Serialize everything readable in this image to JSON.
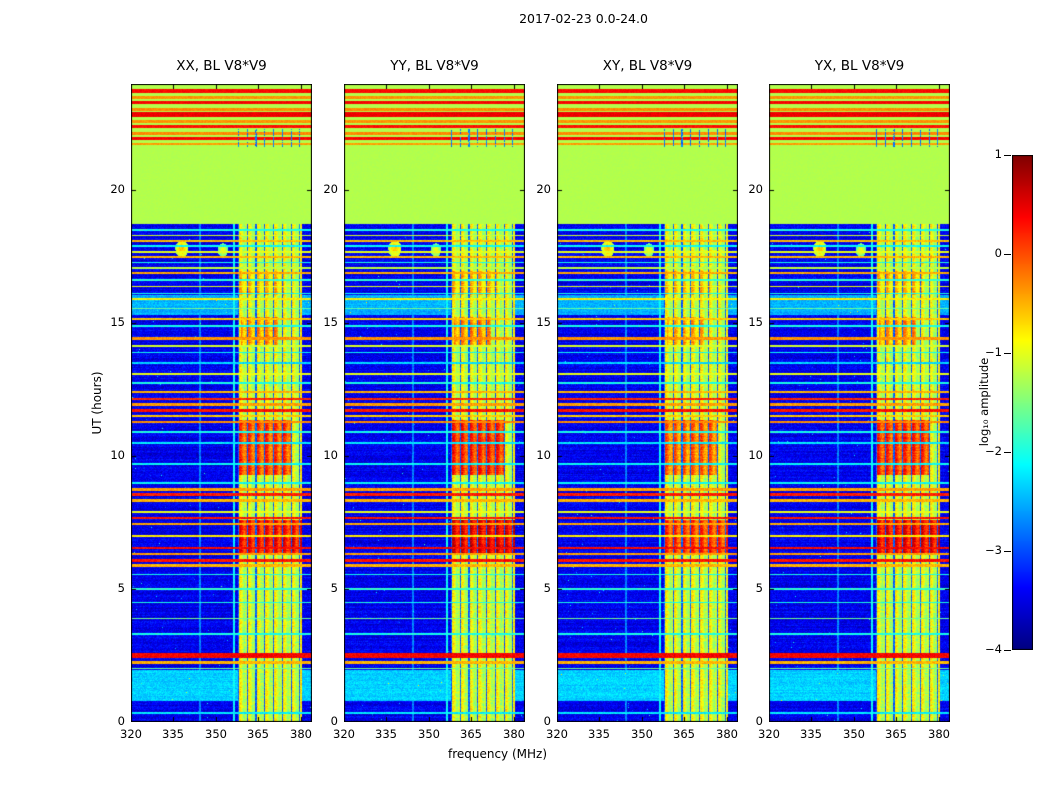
{
  "chart_data": {
    "type": "heatmap",
    "title": "2017-02-23 0.0-24.0",
    "xlabel": "frequency (MHz)",
    "ylabel": "UT (hours)",
    "x_range": [
      320,
      384
    ],
    "y_range": [
      0,
      24
    ],
    "x_ticks": [
      320,
      335,
      350,
      365,
      380
    ],
    "y_ticks": [
      0,
      5,
      10,
      15,
      20
    ],
    "colorbar": {
      "label": "log₁₀ amplitude",
      "ticks": [
        1,
        0,
        -1,
        -2,
        -3,
        -4
      ],
      "vmin": -4,
      "vmax": 1,
      "colormap": "jet"
    },
    "panels": [
      {
        "title": "XX, BL V8*V9",
        "seed": 11,
        "hot_gain": 1.0
      },
      {
        "title": "YY, BL V8*V9",
        "seed": 23,
        "hot_gain": 1.12
      },
      {
        "title": "XY, BL V8*V9",
        "seed": 37,
        "hot_gain": 0.8
      },
      {
        "title": "YX, BL V8*V9",
        "seed": 51,
        "hot_gain": 1.05
      }
    ],
    "features": {
      "background_level": -3.45,
      "noise": {
        "row": 0.25,
        "pixel": 0.45,
        "speckle_prob": 0.0025,
        "speckle_boost": 1.6
      },
      "green_block": {
        "t0": 18.72,
        "t1": 21.62,
        "level": -1.25
      },
      "top_block": {
        "t0": 21.62,
        "level": -1.25,
        "stripes": [
          [
            23.75,
            0.07,
            0.35
          ],
          [
            23.5,
            0.05,
            -0.35
          ],
          [
            23.3,
            0.06,
            0.4
          ],
          [
            23.05,
            0.05,
            -0.3
          ],
          [
            22.85,
            0.08,
            0.45
          ],
          [
            22.6,
            0.05,
            -0.35
          ],
          [
            22.4,
            0.05,
            0.3
          ],
          [
            22.15,
            0.06,
            -0.3
          ],
          [
            21.95,
            0.05,
            0.4
          ],
          [
            21.74,
            0.04,
            -0.4
          ]
        ]
      },
      "band": {
        "f0": 357.8,
        "f1": 380.3,
        "level": -1.05,
        "col_period": 3.1,
        "col_amp": 0.3,
        "dark_width": 0.42,
        "dark_level": -2.9
      },
      "stripes": [
        [
          18.5,
          0.035,
          -2.0
        ],
        [
          18.3,
          0.035,
          -1.1
        ],
        [
          18.08,
          0.04,
          -0.55
        ],
        [
          17.9,
          0.03,
          -2.1
        ],
        [
          17.68,
          0.035,
          -1.0
        ],
        [
          17.5,
          0.045,
          -0.5
        ],
        [
          17.28,
          0.03,
          -2.0
        ],
        [
          17.08,
          0.035,
          -1.2
        ],
        [
          16.88,
          0.045,
          -0.45
        ],
        [
          16.62,
          0.03,
          -1.9
        ],
        [
          16.38,
          0.035,
          -1.0
        ],
        [
          16.12,
          0.035,
          -2.0
        ],
        [
          15.92,
          0.045,
          -0.8
        ],
        [
          15.55,
          0.03,
          -1.6
        ],
        [
          15.15,
          0.04,
          -0.6
        ],
        [
          14.9,
          0.03,
          -2.0
        ],
        [
          14.42,
          0.055,
          -0.35
        ],
        [
          14.15,
          0.035,
          -1.1
        ],
        [
          13.9,
          0.03,
          -2.1
        ],
        [
          13.5,
          0.03,
          -2.3
        ],
        [
          13.1,
          0.03,
          -1.0
        ],
        [
          12.75,
          0.03,
          -2.0
        ],
        [
          12.42,
          0.04,
          -0.5
        ],
        [
          12.15,
          0.05,
          0.2
        ],
        [
          11.95,
          0.045,
          -0.4
        ],
        [
          11.73,
          0.05,
          0.3
        ],
        [
          11.52,
          0.04,
          -0.6
        ],
        [
          11.3,
          0.04,
          -0.3
        ],
        [
          10.9,
          0.03,
          -2.0
        ],
        [
          10.5,
          0.025,
          -2.2
        ],
        [
          9.7,
          0.025,
          -2.1
        ],
        [
          9.0,
          0.03,
          -2.1
        ],
        [
          8.75,
          0.045,
          -0.4
        ],
        [
          8.55,
          0.05,
          0.25
        ],
        [
          8.33,
          0.04,
          -0.5
        ],
        [
          7.9,
          0.03,
          -1.0
        ],
        [
          7.68,
          0.05,
          0.3
        ],
        [
          7.45,
          0.04,
          -0.45
        ],
        [
          7.0,
          0.03,
          -0.8
        ],
        [
          6.55,
          0.05,
          0.35
        ],
        [
          6.33,
          0.04,
          -0.4
        ],
        [
          6.08,
          0.055,
          0.3
        ],
        [
          5.88,
          0.05,
          -0.5
        ],
        [
          5.55,
          0.03,
          -2.0
        ],
        [
          5.0,
          0.03,
          -1.9
        ],
        [
          4.5,
          0.03,
          -2.0
        ],
        [
          3.9,
          0.03,
          -1.6
        ],
        [
          3.3,
          0.04,
          -2.0
        ],
        [
          2.5,
          0.09,
          0.4
        ],
        [
          2.25,
          0.05,
          -0.5
        ],
        [
          2.02,
          0.03,
          -1.6
        ],
        [
          0.35,
          0.04,
          -2.2
        ]
      ],
      "soft_bands": [
        [
          15.3,
          16.05,
          -2.5
        ],
        [
          0.8,
          1.95,
          -2.35
        ],
        [
          1.05,
          1.35,
          -2.05
        ]
      ],
      "hot_blocks": [
        [
          6.3,
          7.6,
          357.8,
          380.3,
          1.35
        ],
        [
          9.3,
          11.35,
          357.8,
          377,
          1.05
        ],
        [
          14.2,
          15.25,
          359,
          372,
          0.6
        ],
        [
          16.05,
          16.95,
          358,
          374,
          0.4
        ]
      ],
      "blobs": [
        [
          17.8,
          338,
          0.32,
          2.3,
          -0.55
        ],
        [
          17.75,
          352.5,
          0.26,
          1.8,
          -0.95
        ]
      ],
      "vlines": [
        [
          356.4,
          0.35,
          -2.1
        ],
        [
          344.5,
          0.3,
          -2.75
        ]
      ]
    }
  }
}
